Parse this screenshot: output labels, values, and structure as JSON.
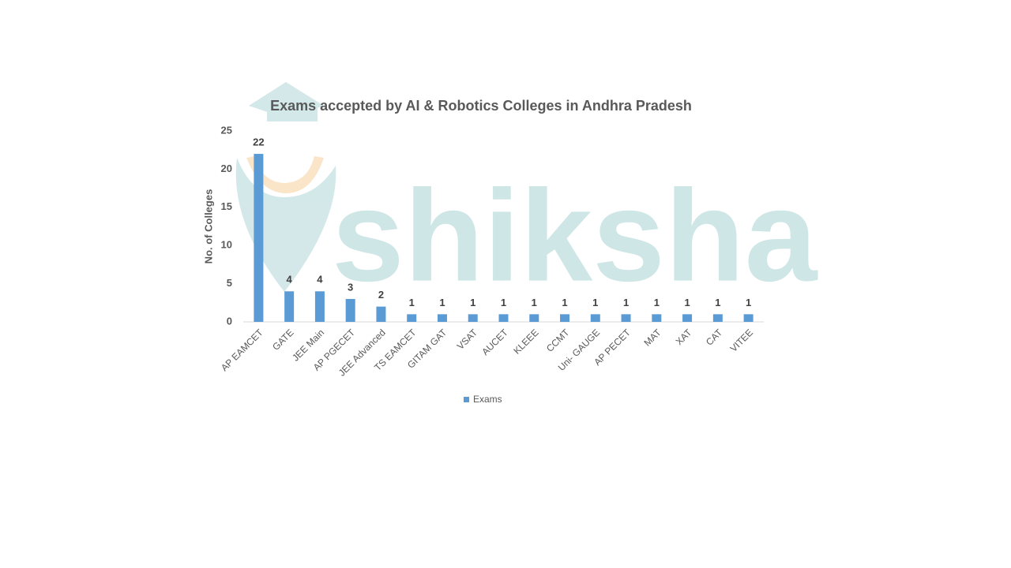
{
  "chart_data": {
    "type": "bar",
    "title": "Exams accepted by AI & Robotics Colleges in Andhra Pradesh",
    "watermark": "shiksha",
    "y_label": "No. of Colleges",
    "categories": [
      "AP EAMCET",
      "GATE",
      "JEE Main",
      "AP PGECET",
      "JEE Advanced",
      "TS EAMCET",
      "GITAM GAT",
      "VSAT",
      "AUCET",
      "KLEEE",
      "CCMT",
      "Uni- GAUGE",
      "AP PECET",
      "MAT",
      "XAT",
      "CAT",
      "VITEE"
    ],
    "series": [
      {
        "name": "Exams",
        "color": "#5b9bd5",
        "values": [
          22,
          4,
          4,
          3,
          2,
          1,
          1,
          1,
          1,
          1,
          1,
          1,
          1,
          1,
          1,
          1,
          1
        ]
      }
    ],
    "ylim": [
      0,
      25
    ],
    "yticks": [
      0,
      5,
      10,
      15,
      20,
      25
    ],
    "grid": false,
    "legend": "bottom"
  }
}
